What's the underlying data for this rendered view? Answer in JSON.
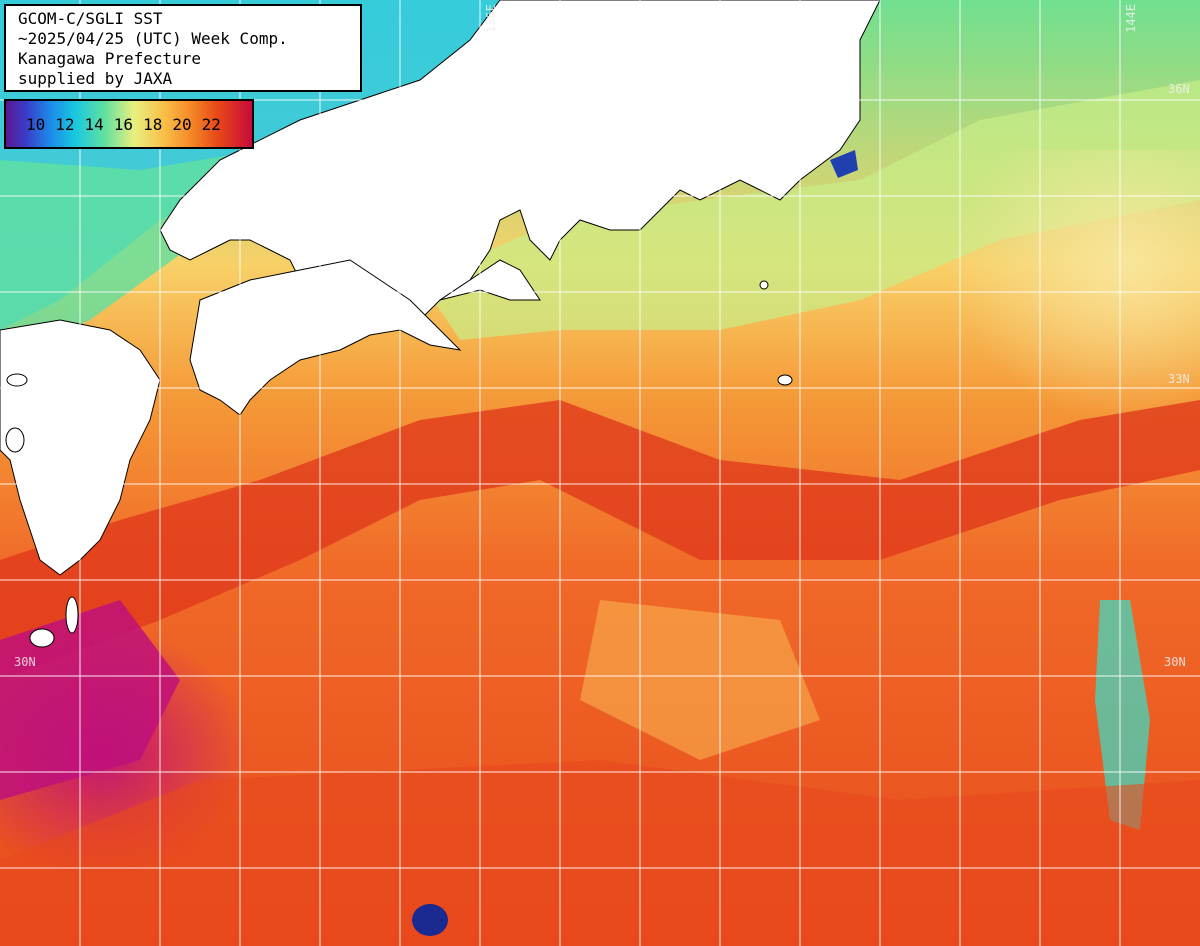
{
  "title": {
    "line1": "GCOM-C/SGLI SST",
    "line2": "~2025/04/25 (UTC) Week Comp.",
    "line3": "Kanagawa Prefecture",
    "line4": "supplied by JAXA"
  },
  "legend": {
    "ticks": [
      "10",
      "12",
      "14",
      "16",
      "18",
      "20",
      "22"
    ],
    "colors": [
      "#5a1890",
      "#1c8ae8",
      "#18c8e0",
      "#60e0a0",
      "#e8f080",
      "#f58a28",
      "#c80a3c"
    ]
  },
  "grid_labels": {
    "lon_136": "136E",
    "lon_144": "144E",
    "lat_36": "36N",
    "lat_33": "33N",
    "lat_30_left": "30N",
    "lat_30_right": "30N"
  },
  "colors": {
    "land": "#ffffff",
    "grid": "#ffffff",
    "warm": "#e8501c",
    "hot": "#c80a3c",
    "cool": "#50e0a0",
    "cold": "#18b0e8"
  }
}
